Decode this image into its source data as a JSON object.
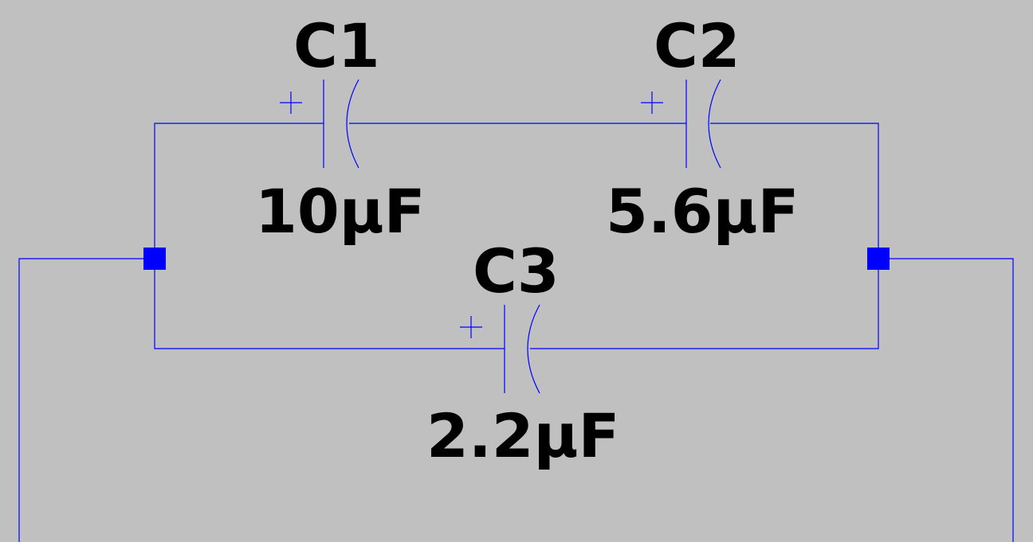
{
  "schematic": {
    "background_color": "#c0c0c0",
    "wire_color": "#0000ff",
    "junction_color": "#0000ff",
    "text_color": "#000000",
    "components": [
      {
        "ref": "C1",
        "value": "10µF",
        "polarity_mark": "+"
      },
      {
        "ref": "C2",
        "value": "5.6µF",
        "polarity_mark": "+"
      },
      {
        "ref": "C3",
        "value": "2.2µF",
        "polarity_mark": "+"
      }
    ]
  }
}
